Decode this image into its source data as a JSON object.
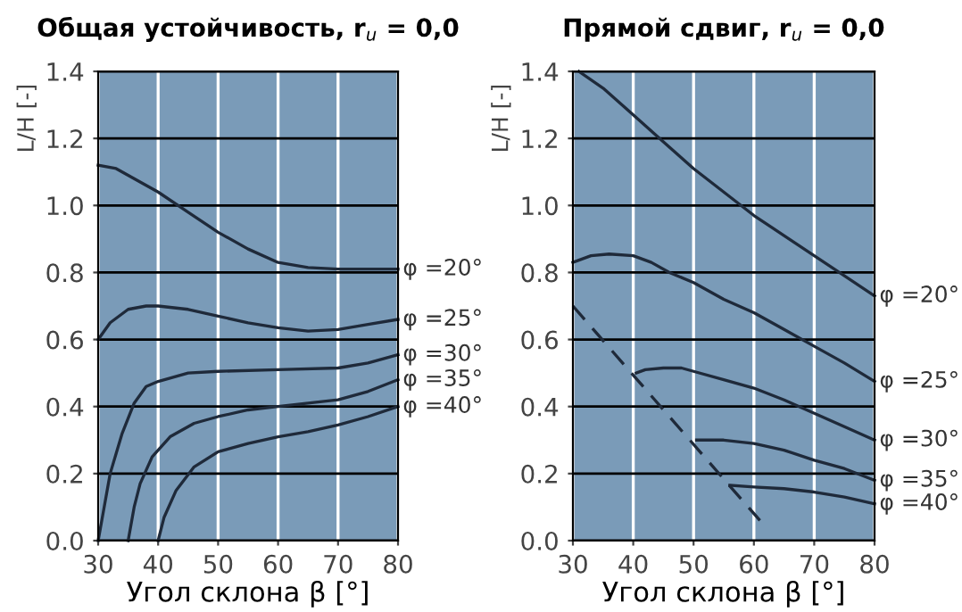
{
  "chart_data": [
    {
      "type": "line",
      "title": "Общая устойчивость, r$_{u}$ = 0,0",
      "xlabel": "Угол склона β [°]",
      "ylabel": "L/H [-]",
      "xlim": [
        30,
        80
      ],
      "ylim": [
        0,
        1.4
      ],
      "xticks": [
        30,
        40,
        50,
        60,
        70,
        80
      ],
      "yticks": [
        {
          "value": 0,
          "label": "0.0"
        },
        {
          "value": 0.2,
          "label": "0.2"
        },
        {
          "value": 0.4,
          "label": "0.4"
        },
        {
          "value": 0.6,
          "label": "0.6"
        },
        {
          "value": 0.8,
          "label": "0.8"
        },
        {
          "value": 1.0,
          "label": "1.0"
        },
        {
          "value": 1.2,
          "label": "1.2"
        },
        {
          "value": 1.4,
          "label": "1.4"
        }
      ],
      "grid": true,
      "legend": false,
      "series": [
        {
          "name": "φ =20°",
          "color": "#1f2a3a",
          "x": [
            30,
            33,
            36,
            40,
            45,
            50,
            55,
            60,
            65,
            70,
            80
          ],
          "values": [
            1.12,
            1.11,
            1.08,
            1.04,
            0.98,
            0.92,
            0.87,
            0.83,
            0.815,
            0.81,
            0.81
          ]
        },
        {
          "name": "φ =25°",
          "color": "#1f2a3a",
          "x": [
            30,
            32,
            35,
            38,
            40,
            45,
            50,
            55,
            60,
            65,
            70,
            75,
            80
          ],
          "values": [
            0.6,
            0.65,
            0.69,
            0.7,
            0.7,
            0.69,
            0.67,
            0.65,
            0.635,
            0.625,
            0.63,
            0.645,
            0.66
          ]
        },
        {
          "name": "φ =30°",
          "color": "#1f2a3a",
          "x": [
            30,
            31,
            32,
            34,
            36,
            38,
            40,
            45,
            50,
            60,
            70,
            75,
            80
          ],
          "values": [
            0.0,
            0.1,
            0.2,
            0.32,
            0.41,
            0.46,
            0.475,
            0.5,
            0.505,
            0.51,
            0.515,
            0.53,
            0.555
          ]
        },
        {
          "name": "φ =35°",
          "color": "#1f2a3a",
          "x": [
            35,
            36,
            37,
            39,
            42,
            46,
            50,
            55,
            60,
            65,
            70,
            75,
            80
          ],
          "values": [
            0.0,
            0.1,
            0.17,
            0.25,
            0.31,
            0.35,
            0.37,
            0.39,
            0.4,
            0.41,
            0.42,
            0.445,
            0.48
          ]
        },
        {
          "name": "φ =40°",
          "color": "#1f2a3a",
          "x": [
            40,
            41,
            43,
            46,
            50,
            55,
            60,
            65,
            70,
            75,
            80
          ],
          "values": [
            0.0,
            0.07,
            0.15,
            0.22,
            0.265,
            0.29,
            0.31,
            0.325,
            0.345,
            0.37,
            0.4
          ]
        }
      ]
    },
    {
      "type": "line",
      "title": "Прямой сдвиг, r$_{u}$ = 0,0",
      "xlabel": "Угол склона β [°]",
      "ylabel": "L/H [-]",
      "xlim": [
        30,
        80
      ],
      "ylim": [
        0,
        1.4
      ],
      "xticks": [
        30,
        40,
        50,
        60,
        70,
        80
      ],
      "yticks": [
        {
          "value": 0,
          "label": "0.0"
        },
        {
          "value": 0.2,
          "label": "0.2"
        },
        {
          "value": 0.4,
          "label": "0.4"
        },
        {
          "value": 0.6,
          "label": "0.6"
        },
        {
          "value": 0.8,
          "label": "0.8"
        },
        {
          "value": 1.0,
          "label": "1.0"
        },
        {
          "value": 1.2,
          "label": "1.2"
        },
        {
          "value": 1.4,
          "label": "1.4"
        }
      ],
      "grid": true,
      "legend": false,
      "series": [
        {
          "name": "φ =20°",
          "color": "#1f2a3a",
          "x": [
            31,
            35,
            40,
            45,
            50,
            55,
            60,
            65,
            70,
            75,
            80
          ],
          "values": [
            1.4,
            1.35,
            1.27,
            1.19,
            1.11,
            1.04,
            0.97,
            0.91,
            0.85,
            0.79,
            0.73
          ]
        },
        {
          "name": "φ =25°",
          "color": "#1f2a3a",
          "x": [
            30,
            33,
            36,
            40,
            43,
            46,
            50,
            55,
            60,
            65,
            70,
            75,
            80
          ],
          "values": [
            0.83,
            0.85,
            0.855,
            0.85,
            0.83,
            0.8,
            0.77,
            0.72,
            0.68,
            0.63,
            0.58,
            0.53,
            0.475
          ]
        },
        {
          "name": "φ =30°",
          "color": "#1f2a3a",
          "x": [
            40.5,
            42,
            45,
            48,
            50,
            55,
            60,
            65,
            70,
            75,
            80
          ],
          "values": [
            0.5,
            0.51,
            0.515,
            0.515,
            0.505,
            0.48,
            0.455,
            0.42,
            0.38,
            0.34,
            0.3
          ]
        },
        {
          "name": "φ =35°",
          "color": "#1f2a3a",
          "x": [
            50.5,
            55,
            60,
            65,
            70,
            75,
            80
          ],
          "values": [
            0.3,
            0.3,
            0.29,
            0.27,
            0.24,
            0.215,
            0.18
          ]
        },
        {
          "name": "φ =40°",
          "color": "#1f2a3a",
          "x": [
            56,
            60,
            65,
            70,
            75,
            80
          ],
          "values": [
            0.165,
            0.16,
            0.155,
            0.145,
            0.13,
            0.11
          ]
        },
        {
          "color": "#1f2a3a",
          "line_style": "dashed",
          "x": [
            30,
            61
          ],
          "values": [
            0.7,
            0.06
          ]
        }
      ]
    }
  ]
}
